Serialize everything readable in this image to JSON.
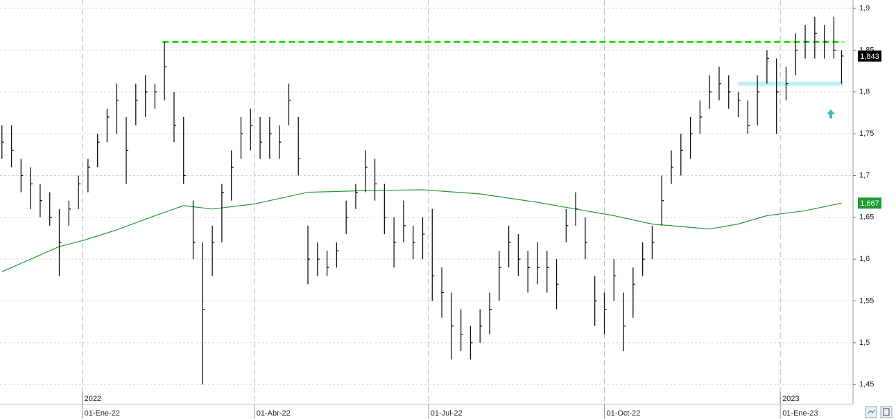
{
  "chart_data": {
    "type": "ohlc",
    "xlim": [
      -1,
      445
    ],
    "ylim": [
      1.427,
      1.91
    ],
    "yticks": [
      {
        "value": 1.9,
        "label": "1,9"
      },
      {
        "value": 1.85,
        "label": "1,85"
      },
      {
        "value": 1.8,
        "label": "1,8"
      },
      {
        "value": 1.75,
        "label": "1,75"
      },
      {
        "value": 1.7,
        "label": "1,7"
      },
      {
        "value": 1.65,
        "label": "1,65"
      },
      {
        "value": 1.6,
        "label": "1,6"
      },
      {
        "value": 1.55,
        "label": "1,55"
      },
      {
        "value": 1.5,
        "label": "1,5"
      },
      {
        "value": 1.45,
        "label": "1,45"
      }
    ],
    "xticks": [
      {
        "value": 42,
        "label": "01-Ene-22"
      },
      {
        "value": 132,
        "label": "01-Abr-22"
      },
      {
        "value": 223,
        "label": "01-Jul-22"
      },
      {
        "value": 315,
        "label": "01-Oct-22"
      },
      {
        "value": 407,
        "label": "01-Ene-23"
      }
    ],
    "year_ticks": [
      {
        "value": 42,
        "label": "2022"
      },
      {
        "value": 407,
        "label": "2023"
      }
    ],
    "grid": true,
    "color": "#111111",
    "x": [
      0,
      5,
      10,
      15,
      20,
      25,
      30,
      35,
      40,
      45,
      50,
      55,
      60,
      65,
      70,
      75,
      80,
      85,
      90,
      95,
      100,
      105,
      110,
      115,
      120,
      125,
      130,
      135,
      140,
      145,
      150,
      155,
      160,
      165,
      170,
      175,
      180,
      185,
      190,
      195,
      200,
      205,
      210,
      215,
      220,
      225,
      230,
      235,
      240,
      245,
      250,
      255,
      260,
      265,
      270,
      275,
      280,
      285,
      290,
      295,
      300,
      305,
      310,
      315,
      320,
      325,
      330,
      335,
      340,
      345,
      350,
      355,
      360,
      365,
      370,
      375,
      380,
      385,
      390,
      395,
      400,
      405,
      410,
      415,
      420,
      425,
      430,
      435,
      439
    ],
    "high": [
      1.76,
      1.76,
      1.72,
      1.71,
      1.69,
      1.68,
      1.66,
      1.67,
      1.7,
      1.72,
      1.75,
      1.78,
      1.81,
      1.77,
      1.81,
      1.82,
      1.81,
      1.86,
      1.8,
      1.77,
      1.67,
      1.62,
      1.64,
      1.69,
      1.73,
      1.77,
      1.78,
      1.77,
      1.77,
      1.76,
      1.81,
      1.77,
      1.64,
      1.62,
      1.61,
      1.62,
      1.67,
      1.69,
      1.73,
      1.72,
      1.69,
      1.65,
      1.67,
      1.64,
      1.65,
      1.66,
      1.59,
      1.56,
      1.54,
      1.52,
      1.54,
      1.56,
      1.61,
      1.64,
      1.63,
      1.61,
      1.62,
      1.61,
      1.6,
      1.66,
      1.68,
      1.65,
      1.58,
      1.56,
      1.6,
      1.56,
      1.59,
      1.62,
      1.64,
      1.7,
      1.73,
      1.75,
      1.77,
      1.79,
      1.82,
      1.83,
      1.82,
      1.8,
      1.79,
      1.82,
      1.85,
      1.84,
      1.83,
      1.87,
      1.88,
      1.89,
      1.88,
      1.89,
      1.85
    ],
    "low": [
      1.72,
      1.71,
      1.68,
      1.66,
      1.65,
      1.64,
      1.58,
      1.64,
      1.66,
      1.68,
      1.71,
      1.74,
      1.75,
      1.69,
      1.76,
      1.77,
      1.78,
      1.79,
      1.74,
      1.69,
      1.6,
      1.45,
      1.58,
      1.62,
      1.67,
      1.72,
      1.73,
      1.72,
      1.72,
      1.72,
      1.76,
      1.7,
      1.57,
      1.58,
      1.58,
      1.59,
      1.63,
      1.66,
      1.68,
      1.67,
      1.63,
      1.59,
      1.62,
      1.6,
      1.6,
      1.55,
      1.53,
      1.48,
      1.49,
      1.48,
      1.5,
      1.51,
      1.55,
      1.59,
      1.58,
      1.56,
      1.57,
      1.56,
      1.54,
      1.62,
      1.64,
      1.6,
      1.52,
      1.51,
      1.55,
      1.49,
      1.53,
      1.58,
      1.6,
      1.64,
      1.69,
      1.7,
      1.72,
      1.75,
      1.78,
      1.79,
      1.78,
      1.77,
      1.75,
      1.76,
      1.81,
      1.75,
      1.79,
      1.82,
      1.84,
      1.84,
      1.84,
      1.84,
      1.81
    ],
    "close": [
      1.74,
      1.73,
      1.7,
      1.69,
      1.67,
      1.65,
      1.62,
      1.66,
      1.69,
      1.71,
      1.74,
      1.77,
      1.79,
      1.73,
      1.79,
      1.8,
      1.8,
      1.83,
      1.76,
      1.7,
      1.62,
      1.54,
      1.62,
      1.68,
      1.71,
      1.75,
      1.76,
      1.74,
      1.75,
      1.74,
      1.79,
      1.72,
      1.6,
      1.6,
      1.59,
      1.61,
      1.65,
      1.68,
      1.71,
      1.69,
      1.65,
      1.62,
      1.64,
      1.62,
      1.63,
      1.58,
      1.56,
      1.52,
      1.51,
      1.5,
      1.52,
      1.54,
      1.59,
      1.62,
      1.6,
      1.59,
      1.59,
      1.59,
      1.57,
      1.64,
      1.66,
      1.62,
      1.55,
      1.54,
      1.58,
      1.52,
      1.57,
      1.6,
      1.62,
      1.67,
      1.71,
      1.73,
      1.75,
      1.77,
      1.8,
      1.81,
      1.8,
      1.79,
      1.76,
      1.8,
      1.84,
      1.8,
      1.81,
      1.85,
      1.86,
      1.87,
      1.86,
      1.85,
      1.843
    ],
    "moving_average": {
      "color": "#1f9a35",
      "x": [
        0,
        30,
        42,
        60,
        80,
        95,
        110,
        132,
        150,
        160,
        190,
        220,
        250,
        280,
        300,
        320,
        340,
        370,
        385,
        400,
        420,
        439
      ],
      "values": [
        1.585,
        1.615,
        1.622,
        1.635,
        1.652,
        1.664,
        1.66,
        1.666,
        1.675,
        1.68,
        1.682,
        1.683,
        1.678,
        1.668,
        1.66,
        1.652,
        1.642,
        1.636,
        1.642,
        1.652,
        1.658,
        1.667
      ]
    },
    "levels": [
      {
        "value": 1.86,
        "from": 84,
        "to": 440,
        "color": "#22dd11",
        "style": "dashed"
      },
      {
        "value": 1.81,
        "from": 385,
        "to": 440,
        "color": "#bfeff5",
        "style": "band"
      }
    ],
    "markers": [
      {
        "value": 1.843,
        "label": "1,843",
        "color": "#000000"
      },
      {
        "value": 1.667,
        "label": "1,667",
        "color": "#1f9a35"
      }
    ]
  }
}
